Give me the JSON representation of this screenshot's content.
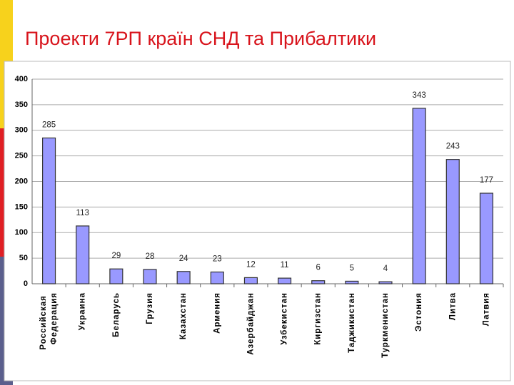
{
  "chart_data": {
    "type": "bar",
    "title": "Проекти 7РП країн СНД та Прибалтики",
    "categories": [
      "Российская Федерация",
      "Украина",
      "Беларусь",
      "Грузия",
      "Казахстан",
      "Армения",
      "Азербайджан",
      "Узбекистан",
      "Киргизстан",
      "Таджикистан",
      "Туркменистан",
      "Эстония",
      "Литва",
      "Латвия"
    ],
    "values": [
      285,
      113,
      29,
      28,
      24,
      23,
      12,
      11,
      6,
      5,
      4,
      343,
      243,
      177
    ],
    "color": "#9999ff",
    "ylim": [
      0,
      400
    ],
    "yticks": [
      0,
      50,
      100,
      150,
      200,
      250,
      300,
      350,
      400
    ],
    "grid": true
  }
}
